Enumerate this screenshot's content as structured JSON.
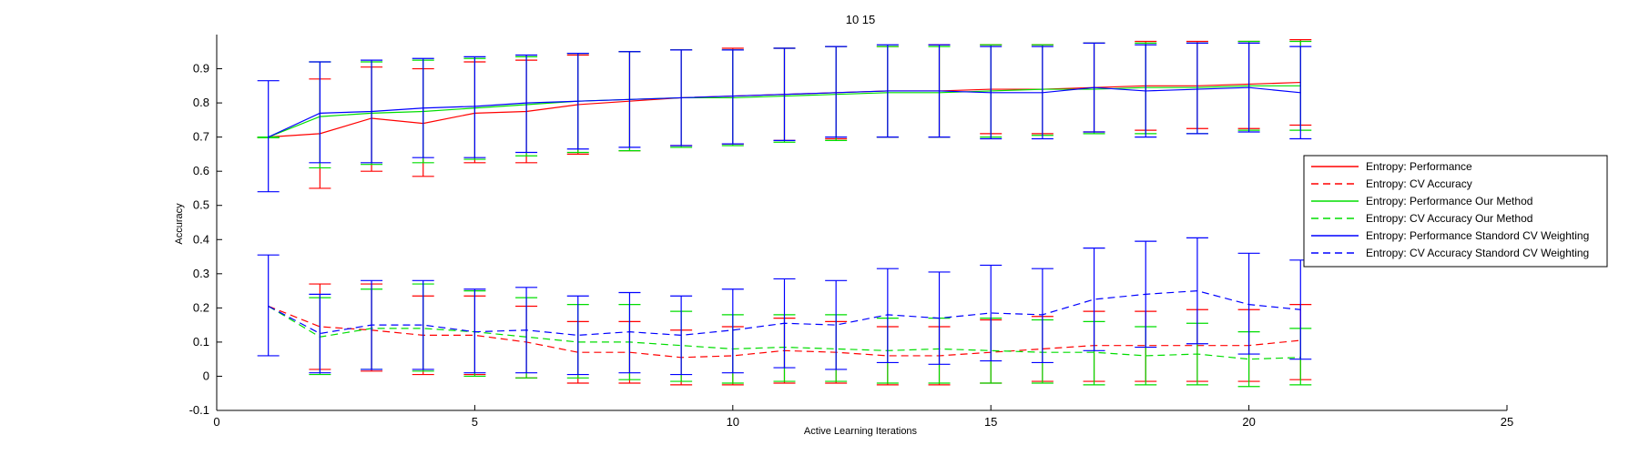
{
  "chart_data": {
    "type": "line",
    "title": "10  15",
    "xlabel": "Active Learning Iterations",
    "ylabel": "Accuracy",
    "xlim": [
      0,
      25
    ],
    "ylim": [
      -0.1,
      1.0
    ],
    "x_ticks": [
      0,
      5,
      10,
      15,
      20,
      25
    ],
    "y_ticks": [
      -0.1,
      0,
      0.1,
      0.2,
      0.3,
      0.4,
      0.5,
      0.6,
      0.7,
      0.8,
      0.9
    ],
    "x_tick_labels": [
      "0",
      "5",
      "10",
      "15",
      "20",
      "25"
    ],
    "y_tick_labels": [
      "-0.1",
      "0",
      "0.1",
      "0.2",
      "0.3",
      "0.4",
      "0.5",
      "0.6",
      "0.7",
      "0.8",
      "0.9"
    ],
    "grid": false,
    "legend_position": "right",
    "x": [
      1,
      2,
      3,
      4,
      5,
      6,
      7,
      8,
      9,
      10,
      11,
      12,
      13,
      14,
      15,
      16,
      17,
      18,
      19,
      20,
      21
    ],
    "series": [
      {
        "name": "Entropy: Performance",
        "color": "#ff0000",
        "style": "solid",
        "values": [
          0.7,
          0.71,
          0.755,
          0.74,
          0.77,
          0.775,
          0.795,
          0.805,
          0.815,
          0.82,
          0.825,
          0.83,
          0.835,
          0.835,
          0.84,
          0.84,
          0.845,
          0.85,
          0.85,
          0.855,
          0.86
        ],
        "err_low": [
          0.698,
          0.55,
          0.6,
          0.585,
          0.625,
          0.625,
          0.65,
          0.66,
          0.675,
          0.68,
          0.69,
          0.695,
          0.7,
          0.7,
          0.71,
          0.71,
          0.715,
          0.72,
          0.725,
          0.725,
          0.735
        ],
        "err_high": [
          0.7,
          0.87,
          0.905,
          0.9,
          0.92,
          0.925,
          0.94,
          0.95,
          0.955,
          0.96,
          0.96,
          0.965,
          0.965,
          0.97,
          0.97,
          0.97,
          0.975,
          0.98,
          0.98,
          0.98,
          0.985
        ]
      },
      {
        "name": "Entropy: CV Accuracy",
        "color": "#ff0000",
        "style": "dashed",
        "values": [
          0.205,
          0.145,
          0.135,
          0.12,
          0.12,
          0.1,
          0.07,
          0.07,
          0.055,
          0.06,
          0.075,
          0.07,
          0.06,
          0.06,
          0.07,
          0.08,
          0.09,
          0.09,
          0.09,
          0.09,
          0.105
        ],
        "err_low": [
          0.205,
          0.02,
          0.015,
          0.005,
          0.005,
          -0.005,
          -0.02,
          -0.02,
          -0.025,
          -0.025,
          -0.02,
          -0.02,
          -0.025,
          -0.025,
          -0.02,
          -0.015,
          -0.015,
          -0.015,
          -0.015,
          -0.015,
          -0.01
        ],
        "err_high": [
          0.205,
          0.27,
          0.27,
          0.235,
          0.235,
          0.205,
          0.16,
          0.16,
          0.135,
          0.145,
          0.17,
          0.16,
          0.145,
          0.145,
          0.165,
          0.175,
          0.19,
          0.19,
          0.195,
          0.195,
          0.21
        ]
      },
      {
        "name": "Entropy: Performance Our Method",
        "color": "#00dd00",
        "style": "solid",
        "values": [
          0.7,
          0.76,
          0.77,
          0.775,
          0.785,
          0.795,
          0.805,
          0.81,
          0.815,
          0.815,
          0.82,
          0.825,
          0.83,
          0.83,
          0.835,
          0.84,
          0.84,
          0.845,
          0.845,
          0.85,
          0.85
        ],
        "err_low": [
          0.698,
          0.61,
          0.62,
          0.625,
          0.635,
          0.645,
          0.655,
          0.66,
          0.67,
          0.675,
          0.685,
          0.69,
          0.7,
          0.7,
          0.7,
          0.705,
          0.71,
          0.71,
          0.71,
          0.72,
          0.72
        ],
        "err_high": [
          0.7,
          0.92,
          0.92,
          0.925,
          0.93,
          0.935,
          0.945,
          0.95,
          0.955,
          0.955,
          0.96,
          0.965,
          0.965,
          0.965,
          0.97,
          0.97,
          0.975,
          0.975,
          0.975,
          0.98,
          0.98
        ]
      },
      {
        "name": "Entropy: CV Accuracy Our Method",
        "color": "#00dd00",
        "style": "dashed",
        "values": [
          0.205,
          0.115,
          0.14,
          0.14,
          0.13,
          0.115,
          0.1,
          0.1,
          0.09,
          0.08,
          0.085,
          0.08,
          0.075,
          0.08,
          0.075,
          0.07,
          0.07,
          0.06,
          0.065,
          0.05,
          0.055
        ],
        "err_low": [
          0.205,
          0.005,
          0.02,
          0.015,
          0.0,
          -0.005,
          -0.005,
          -0.01,
          -0.015,
          -0.02,
          -0.015,
          -0.015,
          -0.02,
          -0.02,
          -0.02,
          -0.02,
          -0.025,
          -0.025,
          -0.025,
          -0.03,
          -0.025
        ],
        "err_high": [
          0.205,
          0.23,
          0.255,
          0.27,
          0.25,
          0.23,
          0.21,
          0.21,
          0.19,
          0.18,
          0.18,
          0.18,
          0.17,
          0.17,
          0.17,
          0.165,
          0.16,
          0.145,
          0.155,
          0.13,
          0.14
        ]
      },
      {
        "name": "Entropy: Performance Standord CV Weighting",
        "color": "#0000ff",
        "style": "solid",
        "values": [
          0.7,
          0.77,
          0.775,
          0.785,
          0.79,
          0.8,
          0.805,
          0.81,
          0.815,
          0.82,
          0.825,
          0.83,
          0.835,
          0.835,
          0.83,
          0.83,
          0.845,
          0.835,
          0.84,
          0.845,
          0.83
        ],
        "err_low": [
          0.54,
          0.625,
          0.625,
          0.64,
          0.64,
          0.655,
          0.665,
          0.67,
          0.675,
          0.68,
          0.69,
          0.7,
          0.7,
          0.7,
          0.695,
          0.695,
          0.715,
          0.7,
          0.71,
          0.715,
          0.695
        ],
        "err_high": [
          0.865,
          0.92,
          0.925,
          0.93,
          0.935,
          0.94,
          0.945,
          0.95,
          0.955,
          0.955,
          0.96,
          0.965,
          0.97,
          0.97,
          0.965,
          0.965,
          0.975,
          0.97,
          0.975,
          0.975,
          0.965
        ]
      },
      {
        "name": "Entropy: CV Accuracy Standord CV Weighting",
        "color": "#0000ff",
        "style": "dashed",
        "values": [
          0.205,
          0.125,
          0.15,
          0.15,
          0.13,
          0.135,
          0.12,
          0.13,
          0.12,
          0.135,
          0.155,
          0.15,
          0.18,
          0.17,
          0.185,
          0.18,
          0.225,
          0.24,
          0.25,
          0.21,
          0.195
        ],
        "err_low": [
          0.06,
          0.01,
          0.02,
          0.02,
          0.01,
          0.01,
          0.005,
          0.01,
          0.005,
          0.01,
          0.025,
          0.02,
          0.04,
          0.035,
          0.045,
          0.04,
          0.075,
          0.085,
          0.095,
          0.065,
          0.05
        ],
        "err_high": [
          0.355,
          0.24,
          0.28,
          0.28,
          0.255,
          0.26,
          0.235,
          0.245,
          0.235,
          0.255,
          0.285,
          0.28,
          0.315,
          0.305,
          0.325,
          0.315,
          0.375,
          0.395,
          0.405,
          0.36,
          0.34
        ]
      }
    ]
  }
}
